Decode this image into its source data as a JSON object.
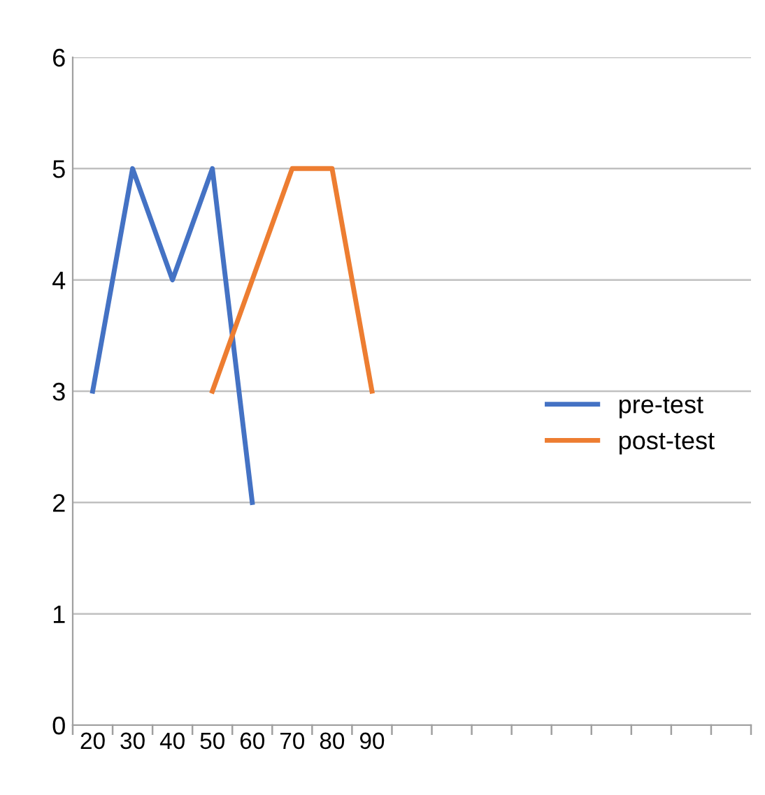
{
  "chart_data": {
    "type": "line",
    "categories": [
      "20",
      "30",
      "40",
      "50",
      "60",
      "70",
      "80",
      "90",
      null,
      null,
      null,
      null,
      null,
      null,
      null,
      null,
      null
    ],
    "series": [
      {
        "name": "pre-test",
        "color": "#4472c4",
        "values": [
          3,
          5,
          4,
          5,
          2,
          null,
          null,
          null,
          null,
          null,
          null,
          null,
          null,
          null,
          null,
          null,
          null
        ]
      },
      {
        "name": "post-test",
        "color": "#ed7d31",
        "values": [
          null,
          null,
          null,
          3,
          4,
          5,
          5,
          3,
          null,
          null,
          null,
          null,
          null,
          null,
          null,
          null,
          null
        ]
      }
    ],
    "ylim": [
      0,
      6
    ],
    "yticks": [
      0,
      1,
      2,
      3,
      4,
      5,
      6
    ],
    "grid": "y",
    "legend": "right",
    "marker": "none",
    "line_style": "solid"
  }
}
